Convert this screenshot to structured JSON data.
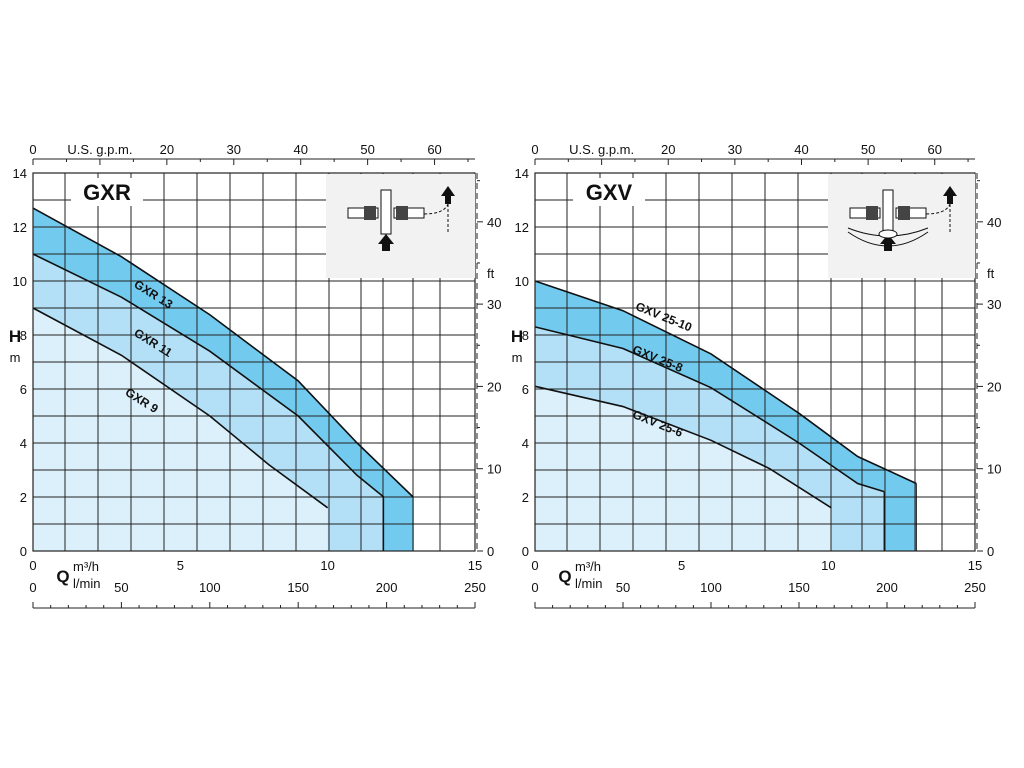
{
  "colors": {
    "grid": "#222222",
    "background": "#ffffff",
    "region_light": "#dcf0fb",
    "region_mid": "#b3e0f6",
    "region_dark": "#72cbee",
    "curve": "#111111",
    "inset_bg": "#f2f2f2"
  },
  "chart_data": [
    {
      "type": "line",
      "title": "GXR",
      "ylabel": "H",
      "yunit": "m",
      "ylim": [
        0,
        14
      ],
      "yticks": [
        "0",
        "2",
        "4",
        "6",
        "8",
        "10",
        "12",
        "14"
      ],
      "y2label": "ft",
      "y2ticks": [
        "0",
        "10",
        "20",
        "30",
        "40"
      ],
      "xlabel": "Q",
      "xunit_m3h": "m³/h",
      "xunit_lmin": "l/min",
      "xlim": [
        0,
        15
      ],
      "xticks_m3h": [
        "0",
        "5",
        "10",
        "15"
      ],
      "xticks_lmin": [
        "0",
        "50",
        "100",
        "150",
        "200",
        "250"
      ],
      "top_axis_label": "U.S. g.p.m.",
      "top_ticks": [
        "0",
        "20",
        "30",
        "40",
        "50",
        "60"
      ],
      "top_first_tick": "0",
      "grid": true,
      "inset": "pump-diagram-top-right",
      "series": [
        {
          "name": "GXR 13",
          "x": [
            0,
            3,
            6,
            9,
            11,
            12.9
          ],
          "y": [
            12.7,
            10.9,
            8.75,
            6.3,
            4.0,
            2.0
          ]
        },
        {
          "name": "GXR 11",
          "x": [
            0,
            3,
            6,
            9,
            11,
            11.9
          ],
          "y": [
            11.0,
            9.4,
            7.4,
            5.0,
            2.8,
            2.0
          ]
        },
        {
          "name": "GXR 9",
          "x": [
            0,
            3,
            6,
            8,
            10.0
          ],
          "y": [
            9.0,
            7.25,
            5.0,
            3.2,
            1.6
          ]
        }
      ],
      "regions": [
        {
          "from_x": 9.85,
          "to_x": 11.9,
          "level": "mid"
        },
        {
          "from_x": 11.9,
          "to_x": 12.9,
          "level": "dark"
        }
      ]
    },
    {
      "type": "line",
      "title": "GXV",
      "ylabel": "H",
      "yunit": "m",
      "ylim": [
        0,
        14
      ],
      "yticks": [
        "0",
        "2",
        "4",
        "6",
        "8",
        "10",
        "12",
        "14"
      ],
      "y2label": "ft",
      "y2ticks": [
        "0",
        "10",
        "20",
        "30",
        "40"
      ],
      "xlabel": "Q",
      "xunit_m3h": "m³/h",
      "xunit_lmin": "l/min",
      "xlim": [
        0,
        15
      ],
      "xticks_m3h": [
        "0",
        "5",
        "10",
        "15"
      ],
      "xticks_lmin": [
        "0",
        "50",
        "100",
        "150",
        "200",
        "250"
      ],
      "top_axis_label": "U.S. g.p.m.",
      "top_ticks": [
        "0",
        "20",
        "30",
        "40",
        "50",
        "60"
      ],
      "grid": true,
      "inset": "pump-diagram-top-right",
      "series": [
        {
          "name": "GXV 25-10",
          "x": [
            0,
            3,
            6,
            9,
            11,
            13.0
          ],
          "y": [
            10.0,
            8.9,
            7.3,
            5.1,
            3.5,
            2.5
          ]
        },
        {
          "name": "GXV 25-8",
          "x": [
            0,
            3,
            6,
            9,
            11,
            11.9
          ],
          "y": [
            8.3,
            7.5,
            6.05,
            4.0,
            2.5,
            2.2
          ]
        },
        {
          "name": "GXV 25-6",
          "x": [
            0,
            3,
            6,
            8,
            10.1
          ],
          "y": [
            6.1,
            5.35,
            4.1,
            3.05,
            1.6
          ]
        }
      ],
      "regions": [
        {
          "from_x": 10.1,
          "to_x": 11.9,
          "level": "mid"
        },
        {
          "from_x": 11.9,
          "to_x": 13.0,
          "level": "dark"
        }
      ]
    }
  ]
}
